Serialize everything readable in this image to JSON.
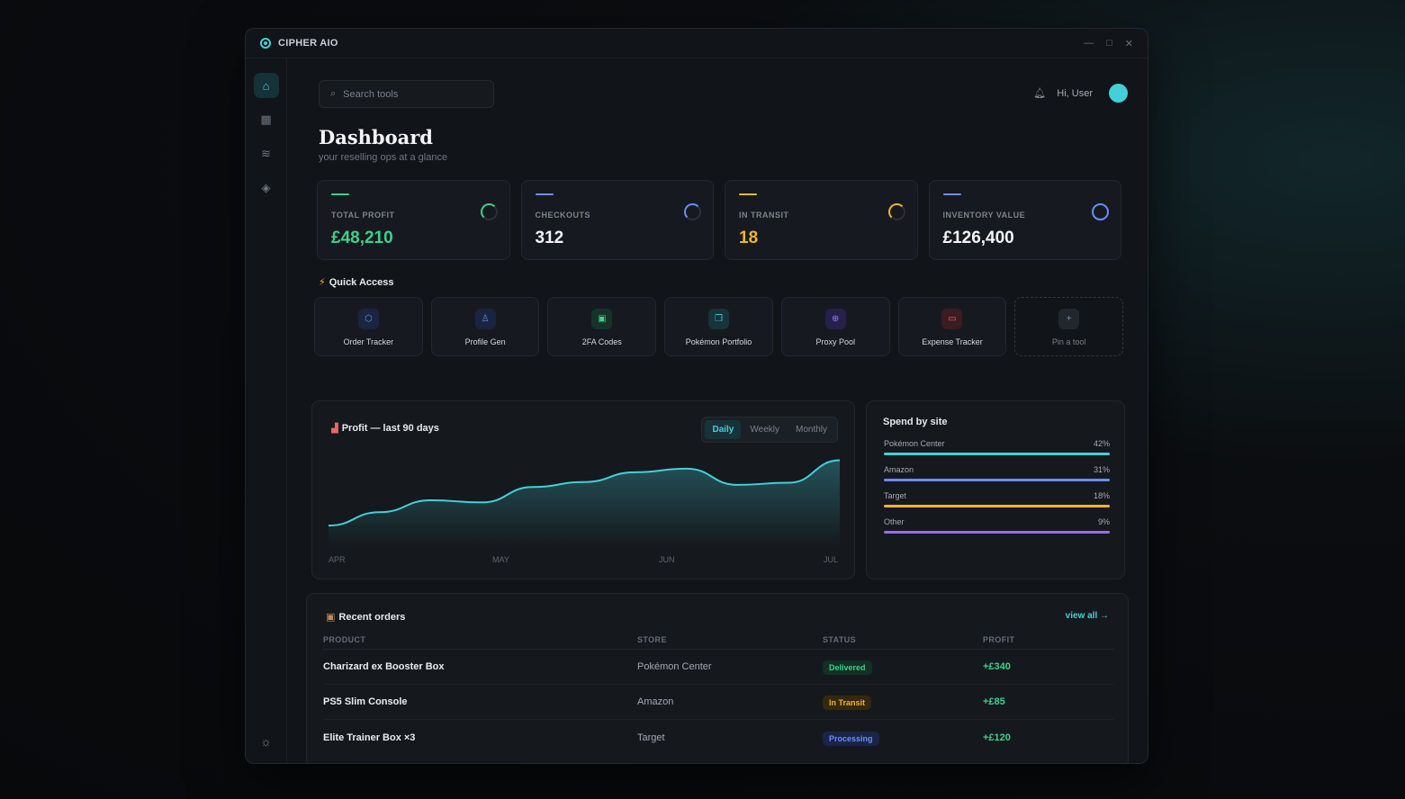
{
  "app": {
    "title": "CIPHER AIO"
  },
  "window_controls": {
    "minimize": "—",
    "maximize": "□",
    "close": "✕"
  },
  "search": {
    "placeholder": "Search tools",
    "value": ""
  },
  "user": {
    "greeting": "Hi, User",
    "avatar_color": "#43d0d8"
  },
  "page": {
    "title": "Dashboard",
    "subtitle": "your reselling ops at a glance"
  },
  "stats": [
    {
      "label": "TOTAL PROFIT",
      "value": "£48,210",
      "color": "#3fd08a"
    },
    {
      "label": "CHECKOUTS",
      "value": "312",
      "color": "#6a8cff"
    },
    {
      "label": "IN TRANSIT",
      "value": "18",
      "color": "#f0b429"
    },
    {
      "label": "INVENTORY VALUE",
      "value": "£126,400",
      "color": "#6a8cff"
    }
  ],
  "quick_access": {
    "title": "Quick Access",
    "items": [
      {
        "label": "Order Tracker",
        "icon": "hexagon-icon",
        "glyph": "⬡",
        "color": "#6a8cff",
        "bg": "#1b2440"
      },
      {
        "label": "Profile Gen",
        "icon": "user-icon",
        "glyph": "♙",
        "color": "#6a8cff",
        "bg": "#1b2440"
      },
      {
        "label": "2FA Codes",
        "icon": "lock-icon",
        "glyph": "▣",
        "color": "#3fd08a",
        "bg": "#15332a"
      },
      {
        "label": "Pokémon Portfolio",
        "icon": "copy-icon",
        "glyph": "❐",
        "color": "#43d0d8",
        "bg": "#16343a"
      },
      {
        "label": "Proxy Pool",
        "icon": "globe-icon",
        "glyph": "⊕",
        "color": "#9a7cff",
        "bg": "#26204a"
      },
      {
        "label": "Expense Tracker",
        "icon": "card-icon",
        "glyph": "▭",
        "color": "#e36a6a",
        "bg": "#3a1c22"
      },
      {
        "label": "Pin a tool",
        "icon": "plus-icon",
        "glyph": "+",
        "color": "#8a909a",
        "bg": "#22262d"
      }
    ]
  },
  "profit_chart": {
    "title": "Profit — last 90 days",
    "tabs": [
      {
        "label": "Daily",
        "active": true
      },
      {
        "label": "Weekly",
        "active": false
      },
      {
        "label": "Monthly",
        "active": false
      }
    ],
    "line_color": "#43d0d8",
    "x_labels": [
      "APR",
      "MAY",
      "JUN",
      "JUL"
    ]
  },
  "chart_data": {
    "type": "area",
    "title": "Profit — last 90 days",
    "x_labels": [
      "APR",
      "MAY",
      "JUN",
      "JUL"
    ],
    "x": [
      0,
      9,
      18,
      27,
      36,
      45,
      54,
      63,
      72,
      81,
      90
    ],
    "y": [
      5,
      24,
      41,
      38,
      60,
      67,
      81,
      86,
      63,
      66,
      98
    ],
    "y_note": "relative values, no y axis printed"
  },
  "spend": {
    "title": "Spend by site",
    "rows": [
      {
        "name": "Pokémon Center",
        "pct": "42%",
        "color": "#43d0d8"
      },
      {
        "name": "Amazon",
        "pct": "31%",
        "color": "#6a8cff"
      },
      {
        "name": "Target",
        "pct": "18%",
        "color": "#f0b429"
      },
      {
        "name": "Other",
        "pct": "9%",
        "color": "#9a6cf2"
      }
    ]
  },
  "orders": {
    "title": "Recent orders",
    "view_all": "view all →",
    "columns": [
      "PRODUCT",
      "STORE",
      "STATUS",
      "PROFIT"
    ],
    "rows": [
      {
        "product": "Charizard ex Booster Box",
        "store": "Pokémon Center",
        "status": "Delivered",
        "status_fg": "#3fd08a",
        "status_bg": "#123024",
        "profit": "+£340"
      },
      {
        "product": "PS5 Slim Console",
        "store": "Amazon",
        "status": "In Transit",
        "status_fg": "#f0b429",
        "status_bg": "#33290f",
        "profit": "+£85"
      },
      {
        "product": "Elite Trainer Box ×3",
        "store": "Target",
        "status": "Processing",
        "status_fg": "#6a8cff",
        "status_bg": "#1a2446",
        "profit": "+£120"
      }
    ]
  }
}
